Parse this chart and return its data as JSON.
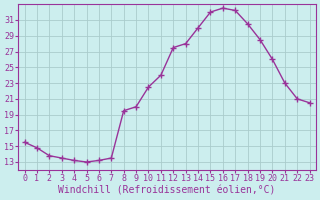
{
  "x": [
    0,
    1,
    2,
    3,
    4,
    5,
    6,
    7,
    8,
    9,
    10,
    11,
    12,
    13,
    14,
    15,
    16,
    17,
    18,
    19,
    20,
    21,
    22,
    23
  ],
  "y": [
    15.5,
    14.8,
    13.8,
    13.5,
    13.2,
    13.0,
    13.2,
    13.5,
    19.5,
    20.0,
    22.5,
    24.0,
    27.5,
    28.0,
    30.0,
    32.0,
    32.5,
    32.2,
    30.5,
    28.5,
    26.0,
    23.0,
    21.0,
    20.5
  ],
  "line_color": "#993399",
  "marker": "+",
  "bg_color": "#cceeee",
  "grid_color": "#aacccc",
  "axis_color": "#993399",
  "xlabel": "Windchill (Refroidissement éolien,°C)",
  "ylim": [
    12,
    33
  ],
  "xlim_min": -0.5,
  "xlim_max": 23.5,
  "yticks": [
    13,
    15,
    17,
    19,
    21,
    23,
    25,
    27,
    29,
    31
  ],
  "xticks": [
    0,
    1,
    2,
    3,
    4,
    5,
    6,
    7,
    8,
    9,
    10,
    11,
    12,
    13,
    14,
    15,
    16,
    17,
    18,
    19,
    20,
    21,
    22,
    23
  ],
  "label_fontsize": 7,
  "tick_fontsize": 6
}
